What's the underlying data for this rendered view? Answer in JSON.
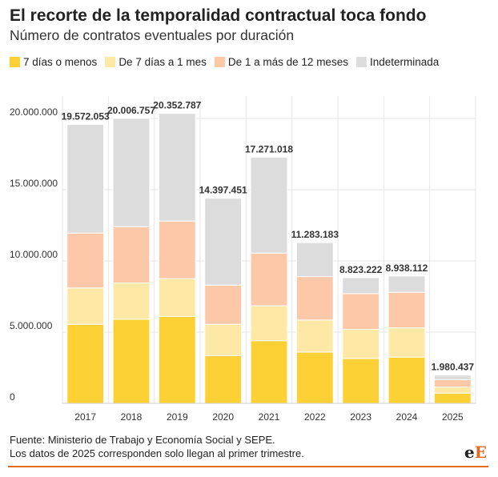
{
  "header": {
    "title": "El recorte de la temporalidad contractual toca fondo",
    "subtitle": "Número de contratos eventuales por duración"
  },
  "footer": {
    "source": "Fuente: Ministerio de Trabajo y Economía Social y SEPE.",
    "note": "Los datos de 2025 corresponden solo llegan al primer trimestre.",
    "logo_e1": "e",
    "logo_e2": "E"
  },
  "colors": {
    "accent": "#e46a1f",
    "grid": "#e6e6e6"
  },
  "chart_data": {
    "type": "bar",
    "stacked": true,
    "categories": [
      "2017",
      "2018",
      "2019",
      "2020",
      "2021",
      "2022",
      "2023",
      "2024",
      "2025"
    ],
    "series": [
      {
        "name": "7 días o menos",
        "color": "#fdd036",
        "values": [
          5550000,
          5900000,
          6100000,
          3350000,
          4400000,
          3600000,
          3150000,
          3250000,
          720000
        ]
      },
      {
        "name": "De 7 días a 1 mes",
        "color": "#fde8a5",
        "values": [
          2550000,
          2550000,
          2650000,
          2200000,
          2450000,
          2250000,
          2050000,
          2050000,
          430000
        ]
      },
      {
        "name": "De 1 a más de 12 meses",
        "color": "#fcc8a8",
        "values": [
          3850000,
          3950000,
          4050000,
          2750000,
          3700000,
          3050000,
          2500000,
          2500000,
          510000
        ]
      },
      {
        "name": "Indeterminada",
        "color": "#dcdcdc",
        "values": [
          7622053,
          7606757,
          7552787,
          6097451,
          6721018,
          2383183,
          1123222,
          1138112,
          320437
        ]
      }
    ],
    "totals": [
      19572053,
      20006757,
      20352787,
      14397451,
      17271018,
      11283183,
      8823222,
      8938112,
      1980437
    ],
    "total_labels": [
      "19.572.053",
      "20.006.757",
      "20.352.787",
      "14.397.451",
      "17.271.018",
      "11.283.183",
      "8.823.222",
      "8.938.112",
      "1.980.437"
    ],
    "y_ticks": [
      0,
      5000000,
      10000000,
      15000000,
      20000000
    ],
    "y_tick_labels": [
      "0",
      "5.000.000",
      "10.000.000",
      "15.000.000",
      "20.000.000"
    ],
    "ylim": [
      0,
      20000000
    ],
    "grid": true,
    "legend_position": "top-left"
  }
}
